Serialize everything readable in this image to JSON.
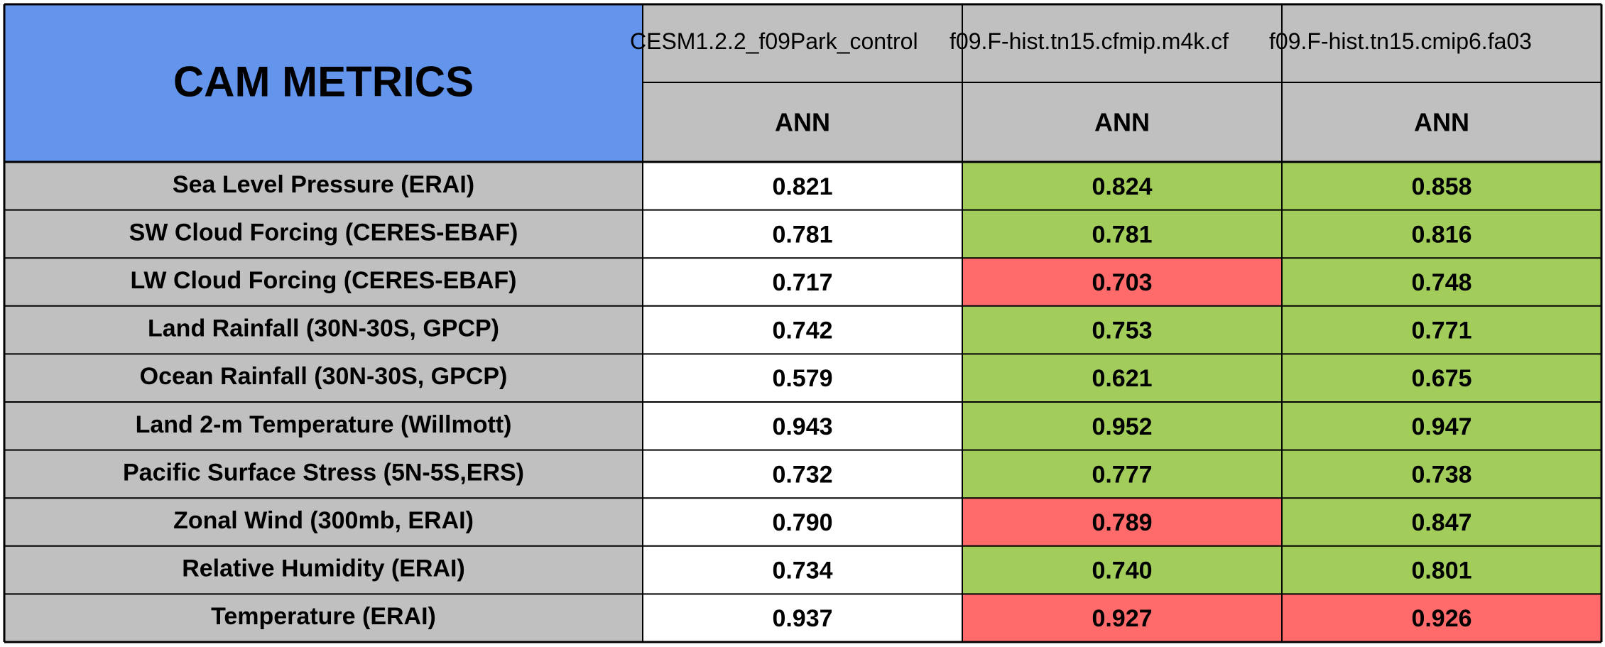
{
  "chart_data": {
    "type": "table",
    "title": "CAM METRICS",
    "columns": [
      {
        "name": "CESM1.2.2_f09Park_control",
        "season": "ANN"
      },
      {
        "name": "f09.F-hist.tn15.cfmip.m4k.cf",
        "season": "ANN"
      },
      {
        "name": "f09.F-hist.tn15.cmip6.fa03",
        "season": "ANN"
      }
    ],
    "rows": [
      {
        "label": "Sea Level Pressure (ERAI)",
        "values": [
          "0.821",
          "0.824",
          "0.858"
        ],
        "status": [
          "baseline",
          "better",
          "better"
        ]
      },
      {
        "label": "SW Cloud Forcing (CERES-EBAF)",
        "values": [
          "0.781",
          "0.781",
          "0.816"
        ],
        "status": [
          "baseline",
          "better",
          "better"
        ]
      },
      {
        "label": "LW Cloud Forcing (CERES-EBAF)",
        "values": [
          "0.717",
          "0.703",
          "0.748"
        ],
        "status": [
          "baseline",
          "worse",
          "better"
        ]
      },
      {
        "label": "Land Rainfall (30N-30S, GPCP)",
        "values": [
          "0.742",
          "0.753",
          "0.771"
        ],
        "status": [
          "baseline",
          "better",
          "better"
        ]
      },
      {
        "label": "Ocean Rainfall (30N-30S, GPCP)",
        "values": [
          "0.579",
          "0.621",
          "0.675"
        ],
        "status": [
          "baseline",
          "better",
          "better"
        ]
      },
      {
        "label": "Land 2-m Temperature (Willmott)",
        "values": [
          "0.943",
          "0.952",
          "0.947"
        ],
        "status": [
          "baseline",
          "better",
          "better"
        ]
      },
      {
        "label": "Pacific Surface Stress (5N-5S,ERS)",
        "values": [
          "0.732",
          "0.777",
          "0.738"
        ],
        "status": [
          "baseline",
          "better",
          "better"
        ]
      },
      {
        "label": "Zonal Wind (300mb, ERAI)",
        "values": [
          "0.790",
          "0.789",
          "0.847"
        ],
        "status": [
          "baseline",
          "worse",
          "better"
        ]
      },
      {
        "label": "Relative Humidity (ERAI)",
        "values": [
          "0.734",
          "0.740",
          "0.801"
        ],
        "status": [
          "baseline",
          "better",
          "better"
        ]
      },
      {
        "label": "Temperature (ERAI)",
        "values": [
          "0.937",
          "0.927",
          "0.926"
        ],
        "status": [
          "baseline",
          "worse",
          "worse"
        ]
      }
    ]
  },
  "colors": {
    "title_bg": "#6495ed",
    "header_bg": "#c0c0c0",
    "label_bg": "#c0c0c0",
    "baseline_bg": "#ffffff",
    "better_bg": "#a2cd5a",
    "worse_bg": "#ff6a6a",
    "grid": "#000000"
  }
}
